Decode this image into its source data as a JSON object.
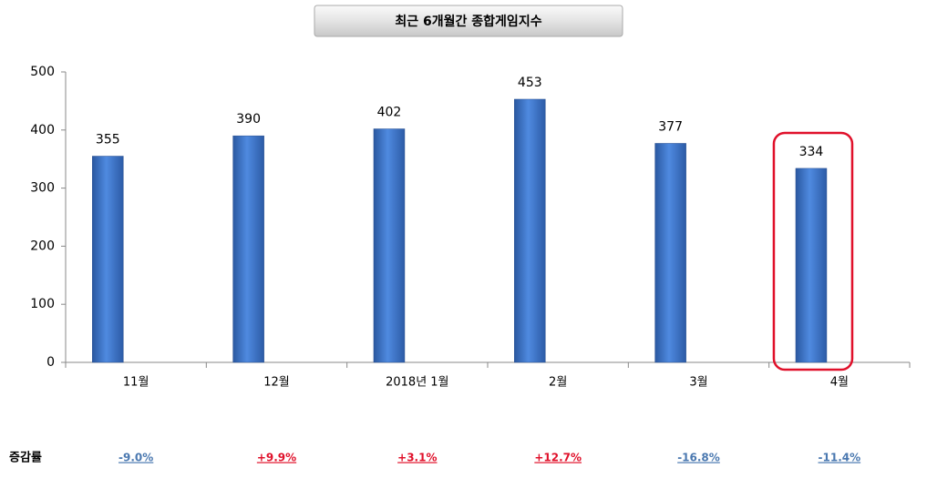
{
  "chart_data": {
    "type": "bar",
    "title": "최근 6개월간 종합게임지수",
    "categories": [
      "11월",
      "12월",
      "2018년 1월",
      "2월",
      "3월",
      "4월"
    ],
    "values": [
      355,
      390,
      402,
      453,
      377,
      334
    ],
    "color": "#3a70c4",
    "ylim": [
      0,
      500
    ],
    "yticks": [
      0,
      100,
      200,
      300,
      400,
      500
    ],
    "change_rate": {
      "label": "증감률",
      "values": [
        -9.0,
        9.9,
        3.1,
        12.7,
        -16.8,
        -11.4
      ],
      "value_labels": [
        "-9.0%",
        "+9.9%",
        "+3.1%",
        "+12.7%",
        "-16.8%",
        "-11.4%"
      ],
      "colors": {
        "up": "#e0102a",
        "down": "#4a78b0"
      }
    }
  }
}
